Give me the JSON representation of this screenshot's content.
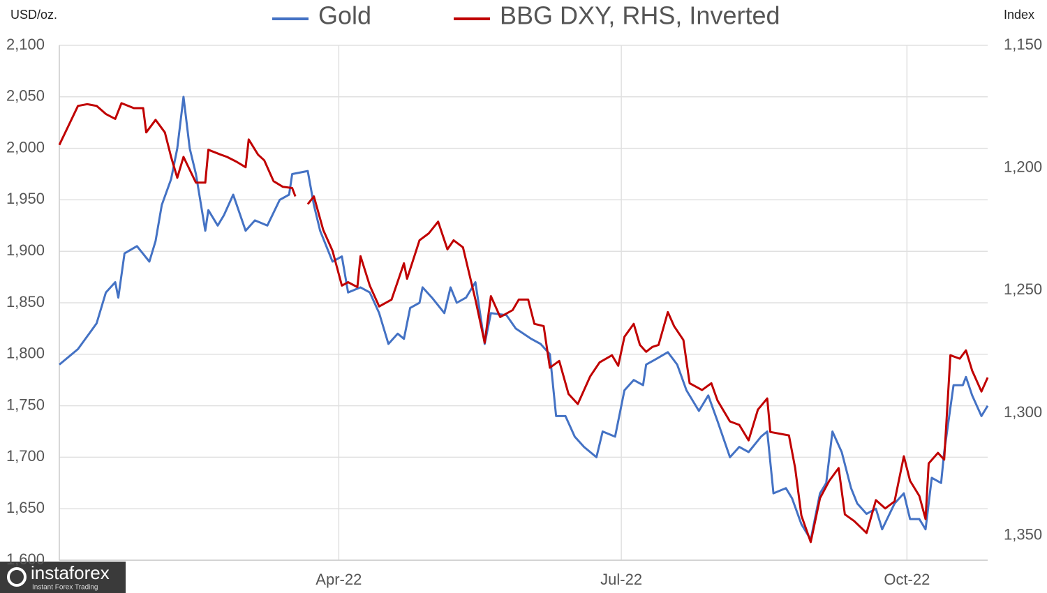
{
  "chart_data": {
    "type": "line",
    "y_axis_label": "USD/oz.",
    "y2_axis_label": "Index",
    "xlim": [
      0,
      299
    ],
    "xticks": [
      {
        "value": 90,
        "label": "Apr-22"
      },
      {
        "value": 181,
        "label": "Jul-22"
      },
      {
        "value": 273,
        "label": "Oct-22"
      }
    ],
    "ylim": [
      1600,
      2100
    ],
    "yticks": [
      {
        "value": 1600,
        "label": "1,600"
      },
      {
        "value": 1650,
        "label": "1,650"
      },
      {
        "value": 1700,
        "label": "1,700"
      },
      {
        "value": 1750,
        "label": "1,750"
      },
      {
        "value": 1800,
        "label": "1,800"
      },
      {
        "value": 1850,
        "label": "1,850"
      },
      {
        "value": 1900,
        "label": "1,900"
      },
      {
        "value": 1950,
        "label": "1,950"
      },
      {
        "value": 2000,
        "label": "2,000"
      },
      {
        "value": 2050,
        "label": "2,050"
      },
      {
        "value": 2100,
        "label": "2,100"
      }
    ],
    "y2lim": [
      1150,
      1360
    ],
    "y2_inverted": true,
    "y2ticks": [
      {
        "value": 1150,
        "label": "1,150"
      },
      {
        "value": 1200,
        "label": "1,200"
      },
      {
        "value": 1250,
        "label": "1,250"
      },
      {
        "value": 1300,
        "label": "1,300"
      },
      {
        "value": 1350,
        "label": "1,350"
      }
    ],
    "grid": true,
    "series": [
      {
        "name": "Gold",
        "color": "#4472c4",
        "x": [
          0,
          6,
          12,
          15,
          18,
          19,
          21,
          25,
          29,
          31,
          33,
          36,
          38,
          40,
          42,
          44,
          47,
          48,
          51,
          53,
          56,
          60,
          63,
          67,
          71,
          74,
          75,
          80,
          82,
          84,
          88,
          91,
          93,
          97,
          100,
          103,
          106,
          109,
          111,
          113,
          116,
          117,
          120,
          124,
          126,
          128,
          131,
          134,
          137,
          139,
          144,
          147,
          152,
          155,
          158,
          160,
          163,
          166,
          169,
          173,
          175,
          179,
          182,
          185,
          188,
          189,
          192,
          196,
          199,
          202,
          206,
          209,
          212,
          216,
          219,
          222,
          226,
          228,
          230,
          234,
          236,
          239,
          242,
          245,
          247,
          249,
          252,
          255,
          257,
          260,
          263,
          265,
          269,
          272,
          274,
          277,
          279,
          281,
          284,
          285,
          288,
          291,
          292,
          294,
          297,
          299
        ],
        "values": [
          1790,
          1805,
          1830,
          1860,
          1870,
          1855,
          1898,
          1905,
          1890,
          1910,
          1945,
          1970,
          2000,
          2050,
          2000,
          1975,
          1920,
          1940,
          1925,
          1935,
          1955,
          1920,
          1930,
          1925,
          1950,
          1955,
          1975,
          1978,
          1945,
          1920,
          1890,
          1895,
          1860,
          1865,
          1860,
          1840,
          1810,
          1820,
          1815,
          1845,
          1850,
          1865,
          1855,
          1840,
          1865,
          1850,
          1855,
          1870,
          1810,
          1840,
          1838,
          1825,
          1815,
          1810,
          1800,
          1740,
          1740,
          1720,
          1710,
          1700,
          1725,
          1720,
          1765,
          1775,
          1770,
          1790,
          1795,
          1802,
          1790,
          1765,
          1745,
          1760,
          1735,
          1700,
          1710,
          1705,
          1720,
          1725,
          1665,
          1670,
          1660,
          1635,
          1620,
          1665,
          1675,
          1725,
          1705,
          1670,
          1655,
          1645,
          1650,
          1630,
          1655,
          1665,
          1640,
          1640,
          1630,
          1680,
          1675,
          1705,
          1770,
          1770,
          1778,
          1760,
          1740,
          1750
        ]
      },
      {
        "name": "BBG DXY, RHS, Inverted",
        "color": "#c00000",
        "axis": "y2",
        "x": [
          0,
          3,
          6,
          9,
          12,
          15,
          18,
          20,
          24,
          27,
          28,
          31,
          34,
          36,
          38,
          40,
          44,
          47,
          48,
          52,
          54,
          57,
          60,
          61,
          64,
          66,
          69,
          72,
          75,
          76,
          78,
          80,
          82,
          85,
          88,
          91,
          93,
          96,
          97,
          100,
          103,
          107,
          111,
          112,
          116,
          119,
          122,
          125,
          127,
          130,
          134,
          137,
          139,
          142,
          146,
          148,
          151,
          153,
          156,
          158,
          161,
          164,
          167,
          171,
          174,
          178,
          180,
          182,
          185,
          187,
          189,
          191,
          193,
          196,
          198,
          201,
          203,
          207,
          210,
          212,
          216,
          219,
          222,
          225,
          228,
          229,
          235,
          237,
          239,
          242,
          245,
          248,
          251,
          253,
          256,
          260,
          263,
          266,
          269,
          272,
          274,
          277,
          279,
          280,
          283,
          285,
          287,
          290,
          292,
          294,
          297,
          299
        ],
        "values": [
          1190.6,
          1182.7,
          1174.7,
          1174,
          1174.7,
          1178,
          1180,
          1173.6,
          1175.6,
          1175.6,
          1185.5,
          1180.4,
          1185.5,
          1195.5,
          1204,
          1195.5,
          1206,
          1206,
          1192.6,
          1194.6,
          1195.5,
          1197.4,
          1199.7,
          1188.4,
          1194.6,
          1196.9,
          1205.4,
          1207.7,
          1208.2,
          1211.6,
          null,
          1214.8,
          1211.6,
          1225.3,
          1233.8,
          1248,
          1246.6,
          1248.6,
          1236,
          1248,
          1256.5,
          1253.7,
          1238.9,
          1245.2,
          1229.5,
          1226.7,
          1221.9,
          1233.2,
          1229.5,
          1232.4,
          1253.7,
          1271.3,
          1252.3,
          1260.8,
          1258,
          1253.7,
          1253.7,
          1263.6,
          1264.5,
          1281.5,
          1278.7,
          1292.2,
          1296.3,
          1285,
          1279.3,
          1276.4,
          1280.7,
          1268.9,
          1263.6,
          1272.2,
          1275,
          1273,
          1272.2,
          1258.8,
          1264.5,
          1270.2,
          1287.8,
          1290.6,
          1287.8,
          1294.9,
          1303.4,
          1304.8,
          1311.1,
          1298.6,
          1294,
          1307.7,
          1309.1,
          1322.4,
          1341.8,
          1352.6,
          1334.7,
          1327.6,
          1322.4,
          1341.3,
          1344,
          1348.9,
          1335.5,
          1338.9,
          1336,
          1317.6,
          1327.6,
          1333.8,
          1343.2,
          1320.5,
          1316.2,
          1319,
          1276.4,
          1277.8,
          1274.4,
          1282.7,
          1291.2,
          1285.5
        ]
      }
    ]
  },
  "watermark": {
    "brand": "instaforex",
    "tagline": "Instant Forex Trading"
  }
}
